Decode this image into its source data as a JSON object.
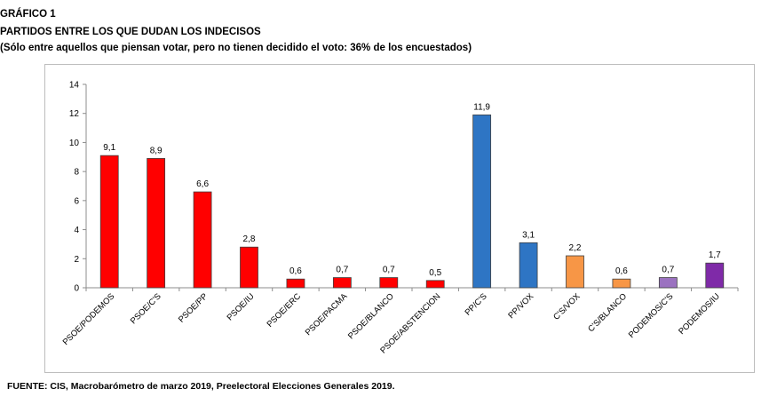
{
  "header": {
    "figure_label": "GRÁFICO 1",
    "title": "PARTIDOS ENTRE LOS QUE DUDAN LOS INDECISOS",
    "subtitle": "(Sólo entre aquellos que piensan votar, pero no tienen decidido el voto: 36% de los encuestados)"
  },
  "footer": {
    "source": "FUENTE: CIS, Macrobarómetro de marzo 2019, Preelectoral Elecciones Generales 2019."
  },
  "chart_data": {
    "type": "bar",
    "title": "PARTIDOS ENTRE LOS QUE DUDAN LOS INDECISOS",
    "xlabel": "",
    "ylabel": "",
    "ylim": [
      0,
      14
    ],
    "yticks": [
      0,
      2,
      4,
      6,
      8,
      10,
      12,
      14
    ],
    "grid": false,
    "categories": [
      "PSOE/PODEMOS",
      "PSOE/C'S",
      "PSOE/PP",
      "PSOE/IU",
      "PSOE/ERC",
      "PSOE/PACMA",
      "PSOE/BLANCO",
      "PSOE/ABSTENCION",
      "PP/C'S",
      "PP/VOX",
      "C'S/VOX",
      "C'S/BLANCO",
      "PODEMOS/C'S",
      "PODEMOS/IU"
    ],
    "values": [
      9.1,
      8.9,
      6.6,
      2.8,
      0.6,
      0.7,
      0.7,
      0.5,
      11.9,
      3.1,
      2.2,
      0.6,
      0.7,
      1.7
    ],
    "value_labels": [
      "9,1",
      "8,9",
      "6,6",
      "2,8",
      "0,6",
      "0,7",
      "0,7",
      "0,5",
      "11,9",
      "3,1",
      "2,2",
      "0,6",
      "0,7",
      "1,7"
    ],
    "colors": [
      "#ff0000",
      "#ff0000",
      "#ff0000",
      "#ff0000",
      "#ff0000",
      "#ff0000",
      "#ff0000",
      "#ff0000",
      "#2e75c4",
      "#2e75c4",
      "#f79646",
      "#f79646",
      "#9b72c0",
      "#7f2aa8"
    ]
  }
}
